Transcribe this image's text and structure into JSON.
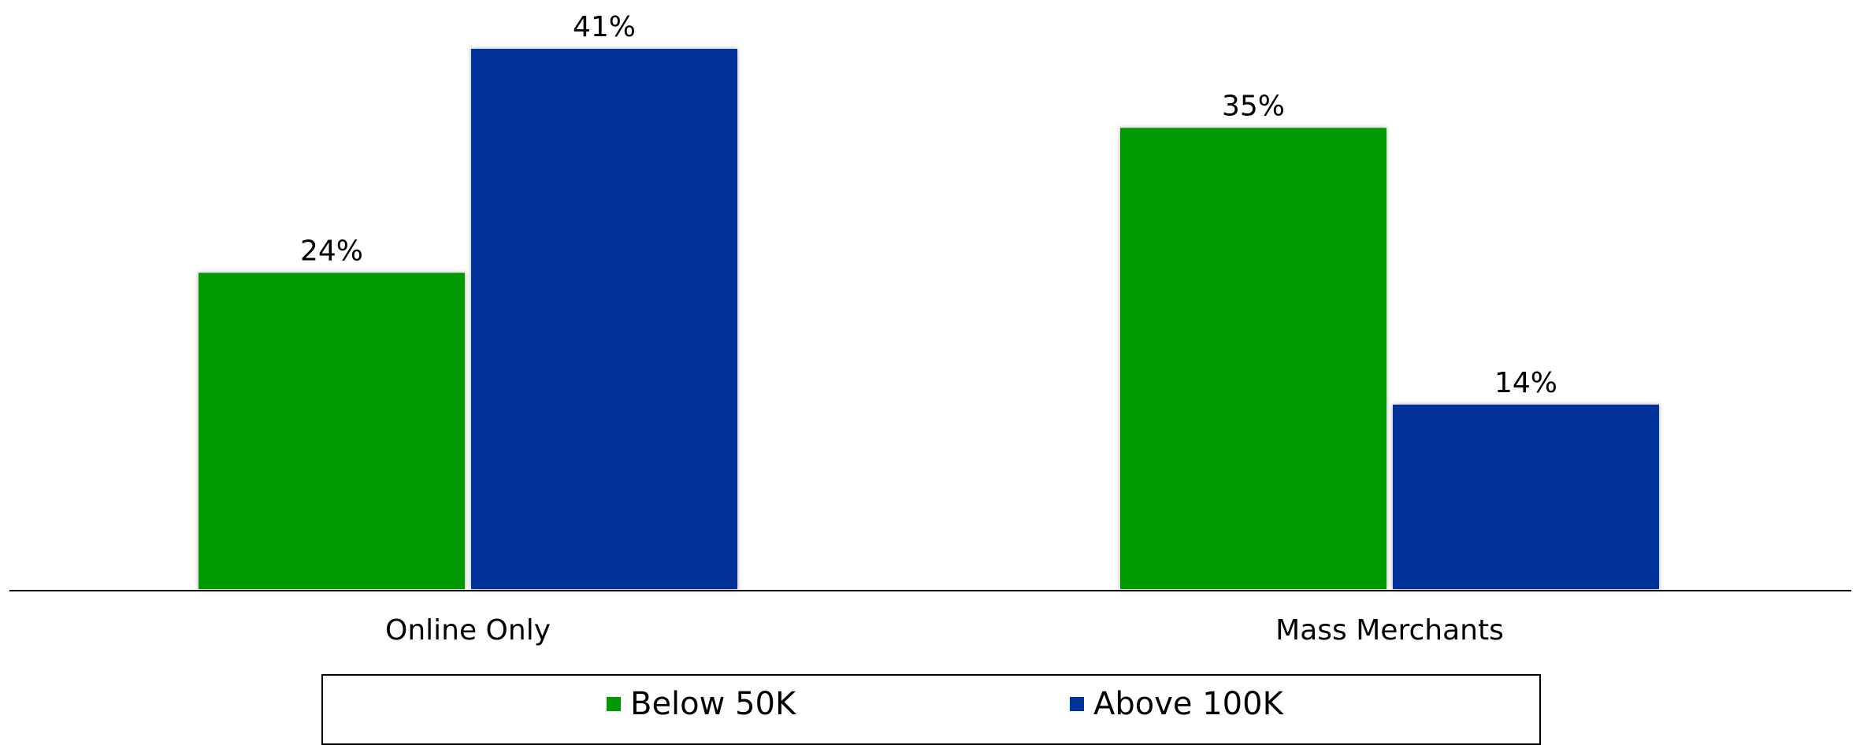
{
  "chart_data": {
    "type": "bar",
    "categories": [
      "Online Only",
      "Mass Merchants"
    ],
    "series": [
      {
        "name": "Below 50K",
        "values": [
          24,
          35
        ],
        "labels": [
          "24%",
          "35%"
        ],
        "color": "#009900"
      },
      {
        "name": "Above 100K",
        "values": [
          41,
          14
        ],
        "labels": [
          "41%",
          "14%"
        ],
        "color": "#003399"
      }
    ],
    "ylim": [
      0,
      41
    ],
    "grid": false,
    "legend_position": "bottom"
  }
}
